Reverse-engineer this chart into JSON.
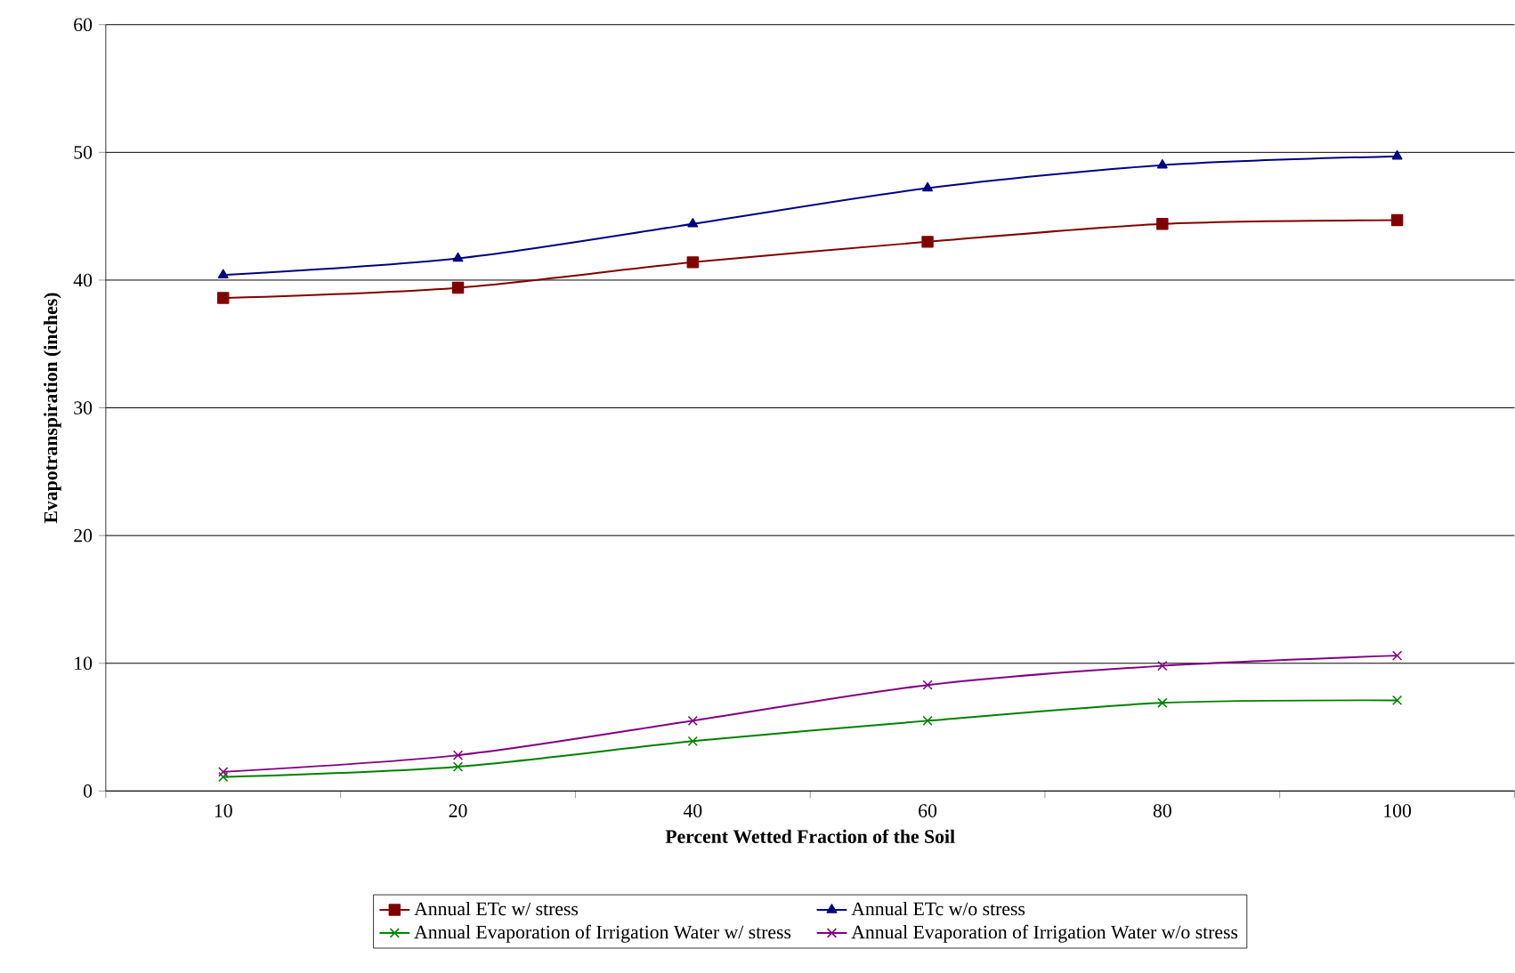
{
  "chart_data": {
    "type": "line",
    "xlabel": "Percent Wetted Fraction of the Soil",
    "ylabel": "Evapotranspiration (inches)",
    "categories": [
      "10",
      "20",
      "40",
      "60",
      "80",
      "100"
    ],
    "series": [
      {
        "name": "Annual ETc w/ stress",
        "color": "#800000",
        "marker": "square",
        "values": [
          38.6,
          39.4,
          41.4,
          43.0,
          44.4,
          44.7
        ]
      },
      {
        "name": "Annual ETc w/o stress",
        "color": "#000080",
        "marker": "triangle",
        "values": [
          40.4,
          41.7,
          44.4,
          47.2,
          49.0,
          49.7
        ]
      },
      {
        "name": "Annual Evaporation of Irrigation Water w/ stress",
        "color": "#008000",
        "marker": "cross",
        "values": [
          1.1,
          1.9,
          3.9,
          5.5,
          6.9,
          7.1
        ]
      },
      {
        "name": "Annual Evaporation of Irrigation Water w/o stress",
        "color": "#800080",
        "marker": "cross",
        "values": [
          1.5,
          2.8,
          5.5,
          8.3,
          9.8,
          10.6
        ]
      }
    ],
    "ylim": [
      0,
      60
    ],
    "yticks": [
      0,
      10,
      20,
      30,
      40,
      50,
      60
    ],
    "grid": "y",
    "legend": "bottom"
  }
}
